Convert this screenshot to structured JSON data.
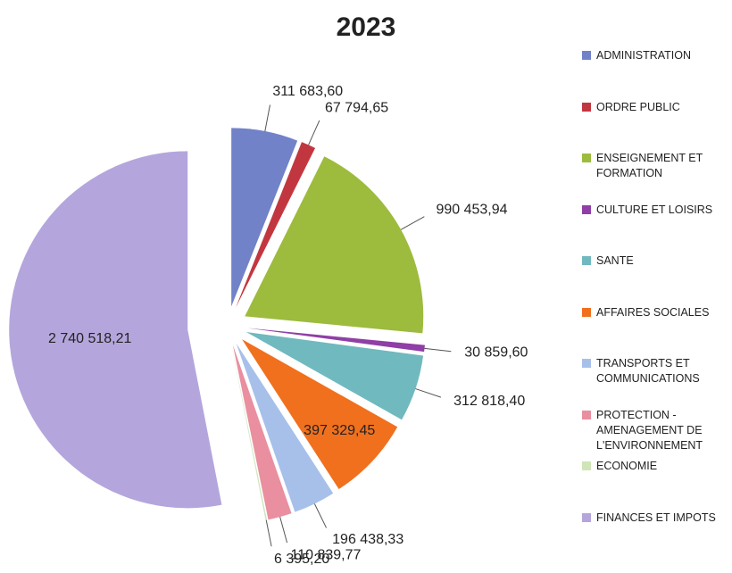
{
  "chart_data": {
    "type": "pie",
    "title": "2023",
    "categories": [
      "ADMINISTRATION",
      "ORDRE PUBLIC",
      "ENSEIGNEMENT ET FORMATION",
      "CULTURE ET LOISIRS",
      "SANTE",
      "AFFAIRES SOCIALES",
      "TRANSPORTS ET COMMUNICATIONS",
      "PROTECTION - AMENAGEMENT DE L'ENVIRONNEMENT",
      "ECONOMIE",
      "FINANCES ET IMPOTS"
    ],
    "values": [
      311683.6,
      67794.65,
      990453.94,
      30859.6,
      312818.4,
      397329.45,
      196438.33,
      110839.77,
      6395.2,
      2740518.21
    ],
    "value_labels": [
      "311 683,60",
      "67 794,65",
      "990 453,94",
      "30 859,60",
      "312 818,40",
      "397 329,45",
      "196 438,33",
      "110 839,77",
      "6 395,20",
      "2 740 518,21"
    ],
    "colors": [
      "#7282c8",
      "#c2373f",
      "#9dbb3d",
      "#8f3fa6",
      "#70b9bf",
      "#f0701e",
      "#a6c0ea",
      "#e98fa0",
      "#cfe5b8",
      "#b4a6dc"
    ],
    "legend": "right"
  }
}
